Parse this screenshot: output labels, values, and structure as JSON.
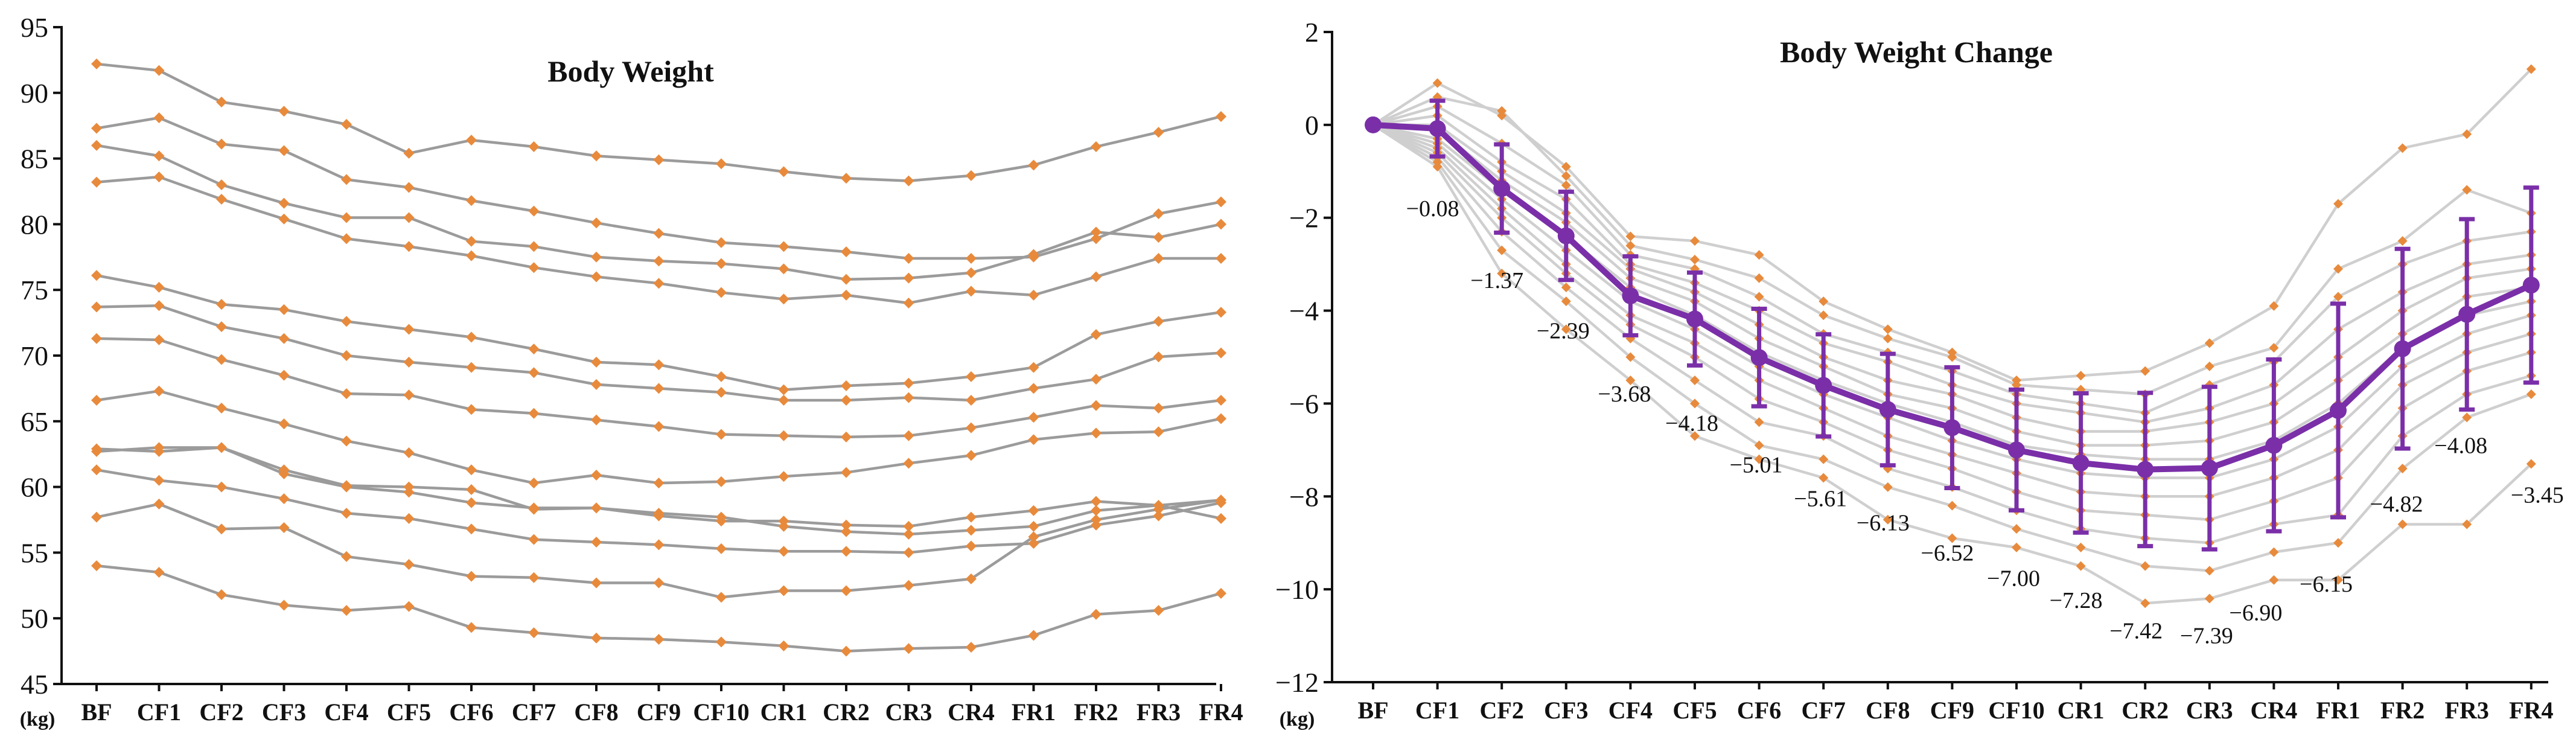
{
  "categories": [
    "BF",
    "CF1",
    "CF2",
    "CF3",
    "CF4",
    "CF5",
    "CF6",
    "CF7",
    "CF8",
    "CF9",
    "CF10",
    "CR1",
    "CR2",
    "CR3",
    "CR4",
    "FR1",
    "FR2",
    "FR3",
    "FR4"
  ],
  "unit_label": "(kg)",
  "colors": {
    "grey_line": "#9b9b9b",
    "light_line": "#cfcfcf",
    "marker": "#e88a3c",
    "mean": "#7a2fa8",
    "axis": "#111111"
  },
  "chart_data": [
    {
      "type": "line",
      "title": "Body Weight",
      "xlabel": "",
      "ylabel": "(kg)",
      "ylim": [
        45,
        95
      ],
      "yticks": [
        45,
        50,
        55,
        60,
        65,
        70,
        75,
        80,
        85,
        90,
        95
      ],
      "series": [
        {
          "name": "s1",
          "values": [
            92.2,
            91.7,
            89.3,
            88.6,
            87.6,
            85.4,
            86.4,
            85.9,
            85.2,
            84.9,
            84.6,
            84.0,
            83.5,
            83.3,
            83.7,
            84.5,
            85.9,
            87.0,
            88.2
          ]
        },
        {
          "name": "s2",
          "values": [
            87.3,
            88.1,
            86.1,
            85.6,
            83.4,
            82.8,
            81.8,
            81.0,
            80.1,
            79.3,
            78.6,
            78.3,
            77.9,
            77.4,
            77.4,
            77.5,
            78.9,
            80.8,
            81.7
          ]
        },
        {
          "name": "s3",
          "values": [
            86.0,
            85.2,
            83.0,
            81.6,
            80.5,
            80.5,
            78.7,
            78.3,
            77.5,
            77.2,
            77.0,
            76.6,
            75.8,
            75.9,
            76.3,
            77.7,
            79.4,
            79.0,
            80.0
          ]
        },
        {
          "name": "s4",
          "values": [
            83.2,
            83.6,
            81.9,
            80.4,
            78.9,
            78.3,
            77.6,
            76.7,
            76.0,
            75.5,
            74.8,
            74.3,
            74.6,
            74.0,
            74.9,
            74.6,
            76.0,
            77.4,
            77.4
          ]
        },
        {
          "name": "s5",
          "values": [
            76.1,
            75.2,
            73.9,
            73.5,
            72.6,
            72.0,
            71.4,
            70.5,
            69.5,
            69.3,
            68.4,
            67.4,
            67.7,
            67.9,
            68.4,
            69.1,
            71.6,
            72.6,
            73.3
          ]
        },
        {
          "name": "s6",
          "values": [
            73.7,
            73.8,
            72.2,
            71.3,
            70.0,
            69.5,
            69.1,
            68.7,
            67.8,
            67.5,
            67.2,
            66.6,
            66.6,
            66.8,
            66.6,
            67.5,
            68.2,
            69.9,
            70.2
          ]
        },
        {
          "name": "s7",
          "values": [
            71.3,
            71.2,
            69.7,
            68.5,
            67.1,
            67.0,
            65.9,
            65.6,
            65.1,
            64.6,
            64.0,
            63.9,
            63.8,
            63.9,
            64.5,
            65.3,
            66.2,
            66.0,
            66.6
          ]
        },
        {
          "name": "s8",
          "values": [
            66.6,
            67.3,
            66.0,
            64.8,
            63.5,
            62.6,
            61.3,
            60.3,
            60.9,
            60.3,
            60.4,
            60.8,
            61.1,
            61.8,
            62.4,
            63.6,
            64.1,
            64.2,
            65.2
          ]
        },
        {
          "name": "s9",
          "values": [
            62.9,
            62.7,
            63.0,
            61.3,
            60.1,
            60.0,
            59.8,
            58.3,
            58.4,
            58.0,
            57.7,
            57.0,
            56.6,
            56.4,
            56.7,
            57.0,
            58.2,
            58.6,
            59.0
          ]
        },
        {
          "name": "s10",
          "values": [
            62.7,
            63.0,
            63.0,
            61.0,
            60.0,
            59.6,
            58.8,
            58.4,
            58.4,
            57.8,
            57.4,
            57.4,
            57.1,
            57.0,
            57.7,
            58.2,
            58.9,
            58.6,
            57.6
          ]
        },
        {
          "name": "s11",
          "values": [
            61.3,
            60.5,
            60.0,
            59.1,
            58.0,
            57.6,
            56.8,
            56.0,
            55.8,
            55.6,
            55.3,
            55.1,
            55.1,
            55.0,
            55.5,
            55.7,
            57.1,
            57.8,
            58.8
          ]
        },
        {
          "name": "s12",
          "values": [
            57.7,
            58.7,
            56.8,
            56.9,
            54.7,
            54.1,
            53.2,
            53.1,
            52.7,
            52.7,
            51.6,
            52.1,
            52.1,
            52.5,
            53.0,
            56.2,
            57.5,
            58.3,
            59.0
          ]
        },
        {
          "name": "s13",
          "values": [
            54.0,
            53.5,
            51.8,
            51.0,
            50.6,
            50.9,
            49.3,
            48.9,
            48.5,
            48.4,
            48.2,
            47.9,
            47.5,
            47.7,
            47.8,
            48.7,
            50.3,
            50.6,
            51.9
          ]
        }
      ]
    },
    {
      "type": "line",
      "title": "Body Weight Change",
      "xlabel": "",
      "ylabel": "(kg)",
      "ylim": [
        -12,
        2
      ],
      "yticks": [
        -12,
        -10,
        -8,
        -6,
        -4,
        -2,
        0,
        2
      ],
      "mean": {
        "name": "mean",
        "values": [
          0,
          -0.08,
          -1.37,
          -2.39,
          -3.68,
          -4.18,
          -5.01,
          -5.61,
          -6.13,
          -6.52,
          -7.0,
          -7.28,
          -7.42,
          -7.39,
          -6.9,
          -6.15,
          -4.82,
          -4.08,
          -3.45
        ],
        "sd": [
          0,
          0.6,
          0.95,
          0.95,
          0.85,
          1.0,
          1.05,
          1.1,
          1.2,
          1.3,
          1.3,
          1.5,
          1.65,
          1.75,
          1.85,
          2.3,
          2.15,
          2.05,
          2.1
        ]
      },
      "data_labels": [
        "-0.08",
        "-1.37",
        "-2.39",
        "-3.68",
        "-4.18",
        "-5.01",
        "-5.61",
        "-6.13",
        "-6.52",
        "-7.00",
        "-7.28",
        "-7.42",
        "-7.39",
        "-6.90",
        "-6.15",
        "-4.82",
        "-4.08",
        "-3.45"
      ],
      "series": [
        {
          "name": "c1",
          "values": [
            0,
            0.9,
            0.2,
            -0.9,
            -2.4,
            -2.5,
            -2.8,
            -3.8,
            -4.4,
            -4.9,
            -5.5,
            -5.4,
            -5.3,
            -4.7,
            -3.9,
            -1.7,
            -0.5,
            -0.2,
            1.2
          ]
        },
        {
          "name": "c2",
          "values": [
            0,
            0.6,
            0.3,
            -1.1,
            -2.6,
            -2.9,
            -3.3,
            -4.1,
            -4.6,
            -5.0,
            -5.6,
            -5.7,
            -5.8,
            -5.2,
            -4.8,
            -3.1,
            -2.5,
            -1.4,
            -1.9
          ]
        },
        {
          "name": "c3",
          "values": [
            0,
            0.4,
            -0.4,
            -1.3,
            -2.8,
            -3.1,
            -3.7,
            -4.5,
            -4.9,
            -5.3,
            -5.8,
            -6.0,
            -6.2,
            -5.6,
            -5.1,
            -3.7,
            -3.0,
            -2.5,
            -2.3
          ]
        },
        {
          "name": "c4",
          "values": [
            0,
            0.2,
            -0.8,
            -1.6,
            -3.0,
            -3.4,
            -4.0,
            -4.7,
            -5.1,
            -5.6,
            -6.0,
            -6.2,
            -6.4,
            -6.1,
            -5.6,
            -4.4,
            -3.6,
            -3.0,
            -2.8
          ]
        },
        {
          "name": "c5",
          "values": [
            0,
            0.0,
            -1.0,
            -1.9,
            -3.1,
            -3.6,
            -4.3,
            -5.0,
            -5.5,
            -5.8,
            -6.3,
            -6.6,
            -6.6,
            -6.4,
            -6.0,
            -5.0,
            -4.0,
            -3.3,
            -3.1
          ]
        },
        {
          "name": "c6",
          "values": [
            0,
            -0.1,
            -1.2,
            -2.1,
            -3.3,
            -3.8,
            -4.6,
            -5.2,
            -5.8,
            -6.1,
            -6.6,
            -6.9,
            -6.9,
            -6.8,
            -6.4,
            -5.5,
            -4.5,
            -3.7,
            -3.5
          ]
        },
        {
          "name": "c7",
          "values": [
            0,
            -0.3,
            -1.4,
            -2.4,
            -3.5,
            -4.1,
            -4.9,
            -5.5,
            -6.0,
            -6.4,
            -6.9,
            -7.1,
            -7.2,
            -7.2,
            -6.8,
            -6.0,
            -4.8,
            -4.1,
            -3.8
          ]
        },
        {
          "name": "c8",
          "values": [
            0,
            -0.4,
            -1.6,
            -2.7,
            -3.8,
            -4.4,
            -5.2,
            -5.8,
            -6.3,
            -6.8,
            -7.2,
            -7.5,
            -7.6,
            -7.6,
            -7.2,
            -6.5,
            -5.2,
            -4.5,
            -4.1
          ]
        },
        {
          "name": "c9",
          "values": [
            0,
            -0.5,
            -1.8,
            -3.0,
            -4.1,
            -4.7,
            -5.5,
            -6.1,
            -6.7,
            -7.1,
            -7.5,
            -7.9,
            -8.0,
            -8.0,
            -7.6,
            -7.0,
            -5.6,
            -4.9,
            -4.5
          ]
        },
        {
          "name": "c10",
          "values": [
            0,
            -0.6,
            -2.0,
            -3.2,
            -4.3,
            -5.0,
            -5.9,
            -6.4,
            -7.0,
            -7.4,
            -7.9,
            -8.3,
            -8.4,
            -8.5,
            -8.1,
            -7.6,
            -6.1,
            -5.3,
            -4.9
          ]
        },
        {
          "name": "c11",
          "values": [
            0,
            -0.7,
            -2.3,
            -3.5,
            -4.6,
            -5.5,
            -6.4,
            -6.7,
            -7.4,
            -7.8,
            -8.3,
            -8.7,
            -8.9,
            -9.0,
            -8.6,
            -8.4,
            -6.7,
            -5.8,
            -5.4
          ]
        },
        {
          "name": "c12",
          "values": [
            0,
            -0.8,
            -2.7,
            -3.8,
            -5.0,
            -6.0,
            -6.9,
            -7.2,
            -7.8,
            -8.2,
            -8.7,
            -9.1,
            -9.5,
            -9.6,
            -9.2,
            -9.0,
            -7.4,
            -6.3,
            -5.8
          ]
        },
        {
          "name": "c13",
          "values": [
            0,
            -0.9,
            -3.2,
            -4.4,
            -5.5,
            -6.7,
            -7.2,
            -7.6,
            -8.5,
            -8.9,
            -9.1,
            -9.5,
            -10.3,
            -10.2,
            -9.8,
            -9.8,
            -8.6,
            -8.6,
            -7.3
          ]
        }
      ]
    }
  ]
}
